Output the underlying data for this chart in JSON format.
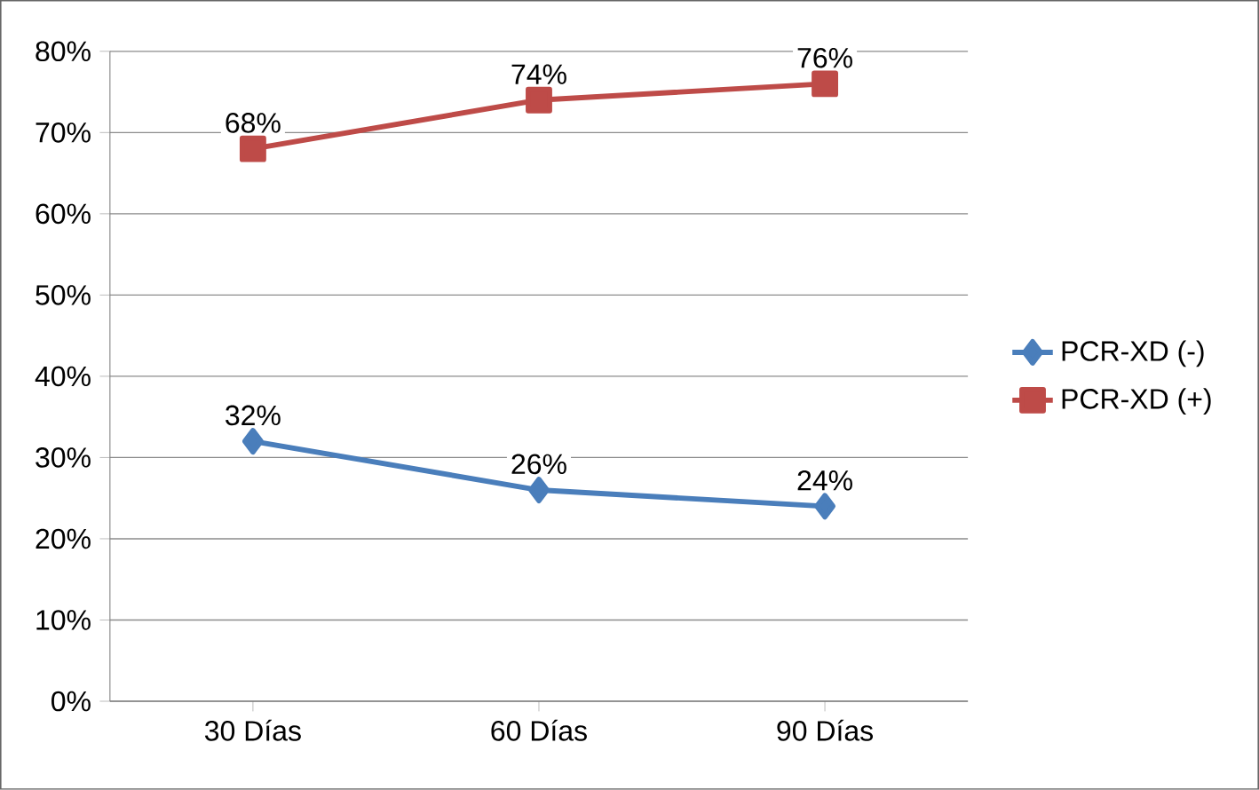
{
  "chart_data": {
    "type": "line",
    "categories": [
      "30 Días",
      "60 Días",
      "90 Días"
    ],
    "series": [
      {
        "name": "PCR-XD (-)",
        "color": "#4a7ebb",
        "marker": "diamond",
        "values": [
          32,
          26,
          24
        ],
        "value_labels": [
          "32%",
          "26%",
          "24%"
        ]
      },
      {
        "name": "PCR-XD (+)",
        "color": "#be4b48",
        "marker": "square",
        "values": [
          68,
          74,
          76
        ],
        "value_labels": [
          "68%",
          "74%",
          "76%"
        ]
      }
    ],
    "ylim": [
      0,
      80
    ],
    "yticks": [
      {
        "value": 0,
        "label": "0%"
      },
      {
        "value": 10,
        "label": "10%"
      },
      {
        "value": 20,
        "label": "20%"
      },
      {
        "value": 30,
        "label": "30%"
      },
      {
        "value": 40,
        "label": "40%"
      },
      {
        "value": 50,
        "label": "50%"
      },
      {
        "value": 60,
        "label": "60%"
      },
      {
        "value": 70,
        "label": "70%"
      },
      {
        "value": 80,
        "label": "80%"
      }
    ],
    "grid": "y",
    "legend": "right",
    "line_style": "solid"
  }
}
